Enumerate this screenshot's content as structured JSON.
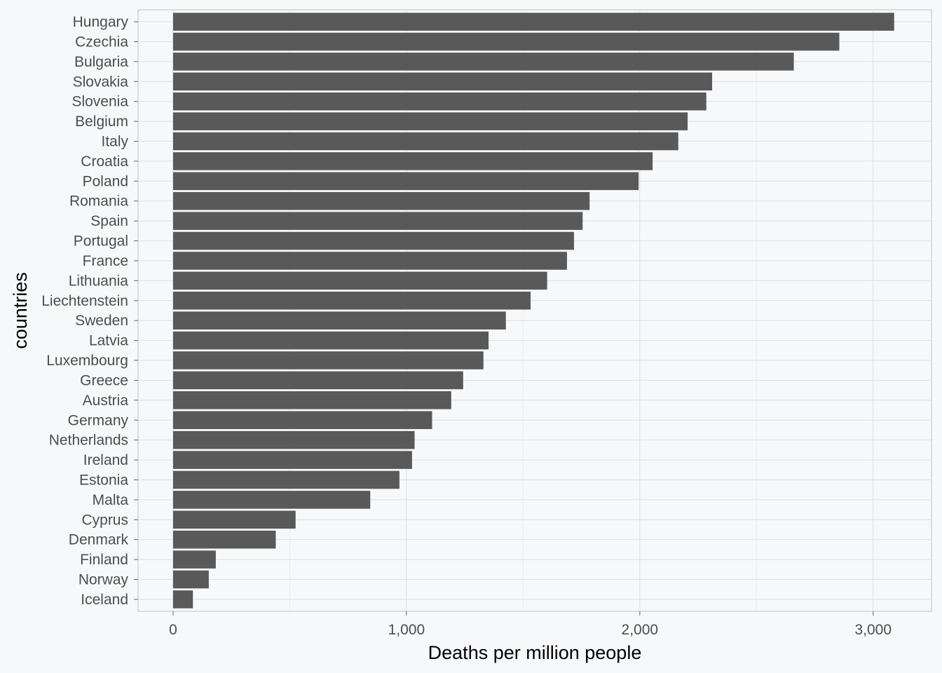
{
  "chart_data": {
    "type": "bar",
    "orientation": "horizontal",
    "xlabel": "Deaths per million people",
    "ylabel": "countries",
    "xlim": [
      -150,
      3250
    ],
    "xticks": [
      0,
      1000,
      2000,
      3000
    ],
    "xtick_labels": [
      "0",
      "1,000",
      "2,000",
      "3,000"
    ],
    "grid": true,
    "categories": [
      "Hungary",
      "Czechia",
      "Bulgaria",
      "Slovakia",
      "Slovenia",
      "Belgium",
      "Italy",
      "Croatia",
      "Poland",
      "Romania",
      "Spain",
      "Portugal",
      "France",
      "Lithuania",
      "Liechtenstein",
      "Sweden",
      "Latvia",
      "Luxembourg",
      "Greece",
      "Austria",
      "Germany",
      "Netherlands",
      "Ireland",
      "Estonia",
      "Malta",
      "Cyprus",
      "Denmark",
      "Finland",
      "Norway",
      "Iceland"
    ],
    "values": [
      3090,
      2855,
      2660,
      2310,
      2285,
      2205,
      2165,
      2055,
      1995,
      1785,
      1755,
      1718,
      1688,
      1603,
      1532,
      1426,
      1352,
      1330,
      1243,
      1192,
      1110,
      1035,
      1024,
      970,
      845,
      525,
      440,
      183,
      153,
      85
    ],
    "bar_color": "#595959"
  }
}
